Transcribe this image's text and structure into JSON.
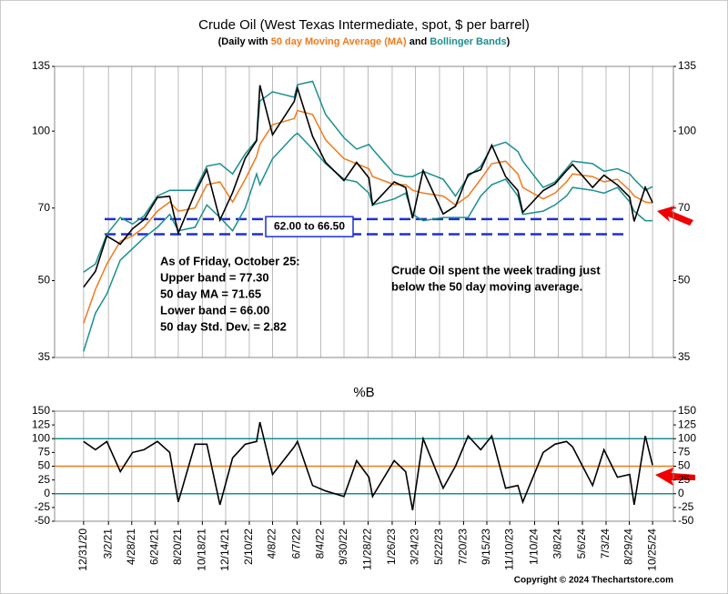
{
  "chart_data": [
    {
      "type": "line",
      "title": "Crude Oil (West Texas Intermediate, spot, $ per barrel)",
      "subtitle": [
        {
          "text": "(Daily with ",
          "color": "#000000"
        },
        {
          "text": "50 day Moving Average (MA)",
          "color": "#f07a1a"
        },
        {
          "text": " and ",
          "color": "#000000"
        },
        {
          "text": "Bollinger Bands",
          "color": "#1a8f8f"
        },
        {
          "text": ")",
          "color": "#000000"
        }
      ],
      "log_scale": true,
      "grid": true,
      "xlim": [
        "2020-10-21",
        "2024-12-15"
      ],
      "ylim": [
        35,
        135
      ],
      "yticks": [
        35,
        50,
        70,
        100,
        135
      ],
      "x": [
        "2020-12-31",
        "2021-01-29",
        "2021-02-26",
        "2021-03-31",
        "2021-04-30",
        "2021-05-28",
        "2021-06-30",
        "2021-07-30",
        "2021-08-20",
        "2021-09-30",
        "2021-10-29",
        "2021-11-30",
        "2021-12-31",
        "2022-01-31",
        "2022-02-28",
        "2022-03-08",
        "2022-04-08",
        "2022-05-31",
        "2022-06-08",
        "2022-07-15",
        "2022-08-16",
        "2022-09-30",
        "2022-10-31",
        "2022-11-30",
        "2022-12-09",
        "2023-01-31",
        "2023-02-28",
        "2023-03-17",
        "2023-04-12",
        "2023-05-31",
        "2023-06-30",
        "2023-07-31",
        "2023-08-31",
        "2023-09-27",
        "2023-10-31",
        "2023-11-30",
        "2023-12-12",
        "2024-01-31",
        "2024-02-29",
        "2024-03-28",
        "2024-04-12",
        "2024-05-31",
        "2024-06-28",
        "2024-07-31",
        "2024-08-30",
        "2024-09-10",
        "2024-10-07",
        "2024-10-25"
      ],
      "series": [
        {
          "name": "Crude Oil",
          "color": "#000000",
          "values": [
            48.5,
            52.2,
            61.5,
            59.2,
            63.6,
            66.3,
            73.5,
            73.9,
            62.3,
            75,
            83.6,
            66.2,
            75.2,
            88.2,
            95.7,
            123.7,
            98.3,
            114.7,
            122.1,
            97.6,
            86.5,
            79.5,
            86.5,
            80.5,
            71,
            79,
            77,
            66.7,
            83.3,
            68.1,
            70.6,
            81.8,
            83.6,
            93.7,
            81,
            75.9,
            68.6,
            75.9,
            78.3,
            83.2,
            85.7,
            77,
            81.5,
            77.9,
            73.6,
            65.8,
            77.1,
            71.8
          ]
        },
        {
          "name": "50 day Moving Average (MA)",
          "color": "#f07a1a",
          "values": [
            41,
            48,
            54,
            60,
            61.5,
            64,
            69,
            72,
            69,
            70,
            78,
            79,
            72,
            80,
            89,
            94,
            103,
            106,
            110,
            108,
            96,
            88,
            86,
            84,
            81,
            78,
            78,
            76,
            75,
            74,
            71,
            74,
            80,
            86,
            87,
            82,
            77,
            73,
            75,
            79,
            82,
            81,
            79,
            80,
            76,
            74,
            72,
            71.65
          ]
        },
        {
          "name": "Upper band",
          "color": "#1a8f8f",
          "values": [
            52,
            54,
            62,
            67,
            65,
            67.5,
            74,
            76,
            76,
            76,
            85,
            86,
            82,
            90,
            96,
            115,
            120,
            117,
            124,
            126,
            108,
            97,
            92,
            94,
            92,
            82,
            81,
            81,
            83,
            80,
            74,
            81,
            85,
            93,
            95,
            91,
            87,
            77,
            79,
            84,
            87,
            86,
            83,
            84,
            82,
            80,
            76,
            77.3
          ]
        },
        {
          "name": "Lower band",
          "color": "#1a8f8f",
          "values": [
            36,
            43,
            47,
            55,
            58,
            61,
            64,
            68,
            63,
            64,
            71,
            67,
            63,
            70,
            82,
            78,
            88,
            98,
            99,
            92,
            86,
            80,
            79,
            75,
            71,
            73,
            75,
            68,
            66,
            67,
            67,
            67,
            74,
            78,
            80,
            74,
            68,
            69,
            71,
            74,
            77,
            76,
            75,
            77,
            72,
            69,
            66,
            66
          ]
        }
      ],
      "range_lines": [
        66.5,
        62
      ],
      "range_label": "62.00 to 66.50",
      "annotations": [
        "As of Friday, October 25:",
        "Upper band = 77.30",
        "50 day MA = 71.65",
        "Lower band = 66.00",
        "50 day Std. Dev. = 2.82"
      ],
      "note": [
        "Crude Oil spent the week trading just",
        "below the 50 day moving average."
      ]
    },
    {
      "type": "line",
      "title": "%B",
      "grid": true,
      "xlim": [
        "2020-10-21",
        "2024-12-15"
      ],
      "ylim": [
        -50,
        150
      ],
      "yticks": [
        -50,
        -25,
        0,
        25,
        50,
        75,
        100,
        125,
        150
      ],
      "xticks": [
        {
          "value": "2020-12-31",
          "label": "12/31/20"
        },
        {
          "value": "2021-03-02",
          "label": "3/2/21"
        },
        {
          "value": "2021-04-28",
          "label": "4/28/21"
        },
        {
          "value": "2021-06-24",
          "label": "6/24/21"
        },
        {
          "value": "2021-08-20",
          "label": "8/20/21"
        },
        {
          "value": "2021-10-18",
          "label": "10/18/21"
        },
        {
          "value": "2021-12-14",
          "label": "12/14/21"
        },
        {
          "value": "2022-02-10",
          "label": "2/10/22"
        },
        {
          "value": "2022-04-08",
          "label": "4/8/22"
        },
        {
          "value": "2022-06-07",
          "label": "6/7/22"
        },
        {
          "value": "2022-08-04",
          "label": "8/4/22"
        },
        {
          "value": "2022-09-30",
          "label": "9/30/22"
        },
        {
          "value": "2022-11-28",
          "label": "11/28/22"
        },
        {
          "value": "2023-01-26",
          "label": "1/26/23"
        },
        {
          "value": "2023-03-24",
          "label": "3/24/23"
        },
        {
          "value": "2023-05-22",
          "label": "5/22/23"
        },
        {
          "value": "2023-07-20",
          "label": "7/20/23"
        },
        {
          "value": "2023-09-15",
          "label": "9/15/23"
        },
        {
          "value": "2023-11-10",
          "label": "11/10/23"
        },
        {
          "value": "2024-01-10",
          "label": "1/10/24"
        },
        {
          "value": "2024-03-08",
          "label": "3/8/24"
        },
        {
          "value": "2024-05-06",
          "label": "5/6/24"
        },
        {
          "value": "2024-07-03",
          "label": "7/3/24"
        },
        {
          "value": "2024-08-29",
          "label": "8/29/24"
        },
        {
          "value": "2024-10-25",
          "label": "10/25/24"
        }
      ],
      "hlines": [
        {
          "value": 100,
          "color": "#1a8f8f"
        },
        {
          "value": 50,
          "color": "#f07a1a"
        },
        {
          "value": 0,
          "color": "#1a8f8f"
        }
      ],
      "x": [
        "2020-12-31",
        "2021-01-29",
        "2021-02-26",
        "2021-03-31",
        "2021-04-30",
        "2021-05-28",
        "2021-06-30",
        "2021-07-30",
        "2021-08-20",
        "2021-09-30",
        "2021-10-29",
        "2021-11-30",
        "2021-12-31",
        "2022-01-31",
        "2022-02-28",
        "2022-03-08",
        "2022-04-08",
        "2022-05-31",
        "2022-06-08",
        "2022-07-15",
        "2022-08-16",
        "2022-09-30",
        "2022-10-31",
        "2022-11-30",
        "2022-12-09",
        "2023-01-31",
        "2023-02-28",
        "2023-03-17",
        "2023-04-12",
        "2023-05-31",
        "2023-06-30",
        "2023-07-31",
        "2023-08-31",
        "2023-09-27",
        "2023-10-31",
        "2023-11-30",
        "2023-12-12",
        "2024-01-31",
        "2024-02-29",
        "2024-03-28",
        "2024-04-12",
        "2024-05-31",
        "2024-06-28",
        "2024-07-31",
        "2024-08-30",
        "2024-09-10",
        "2024-10-07",
        "2024-10-25"
      ],
      "series": [
        {
          "name": "%B",
          "color": "#000000",
          "values": [
            95,
            80,
            95,
            40,
            75,
            80,
            95,
            75,
            -15,
            90,
            90,
            -20,
            65,
            90,
            95,
            130,
            35,
            85,
            95,
            15,
            5,
            -5,
            60,
            30,
            -5,
            60,
            40,
            -30,
            100,
            10,
            50,
            105,
            80,
            105,
            10,
            15,
            -15,
            75,
            90,
            95,
            85,
            15,
            80,
            30,
            35,
            -20,
            105,
            52
          ]
        }
      ],
      "copyright": "Copyright © 2024 Thechartstore.com"
    }
  ]
}
